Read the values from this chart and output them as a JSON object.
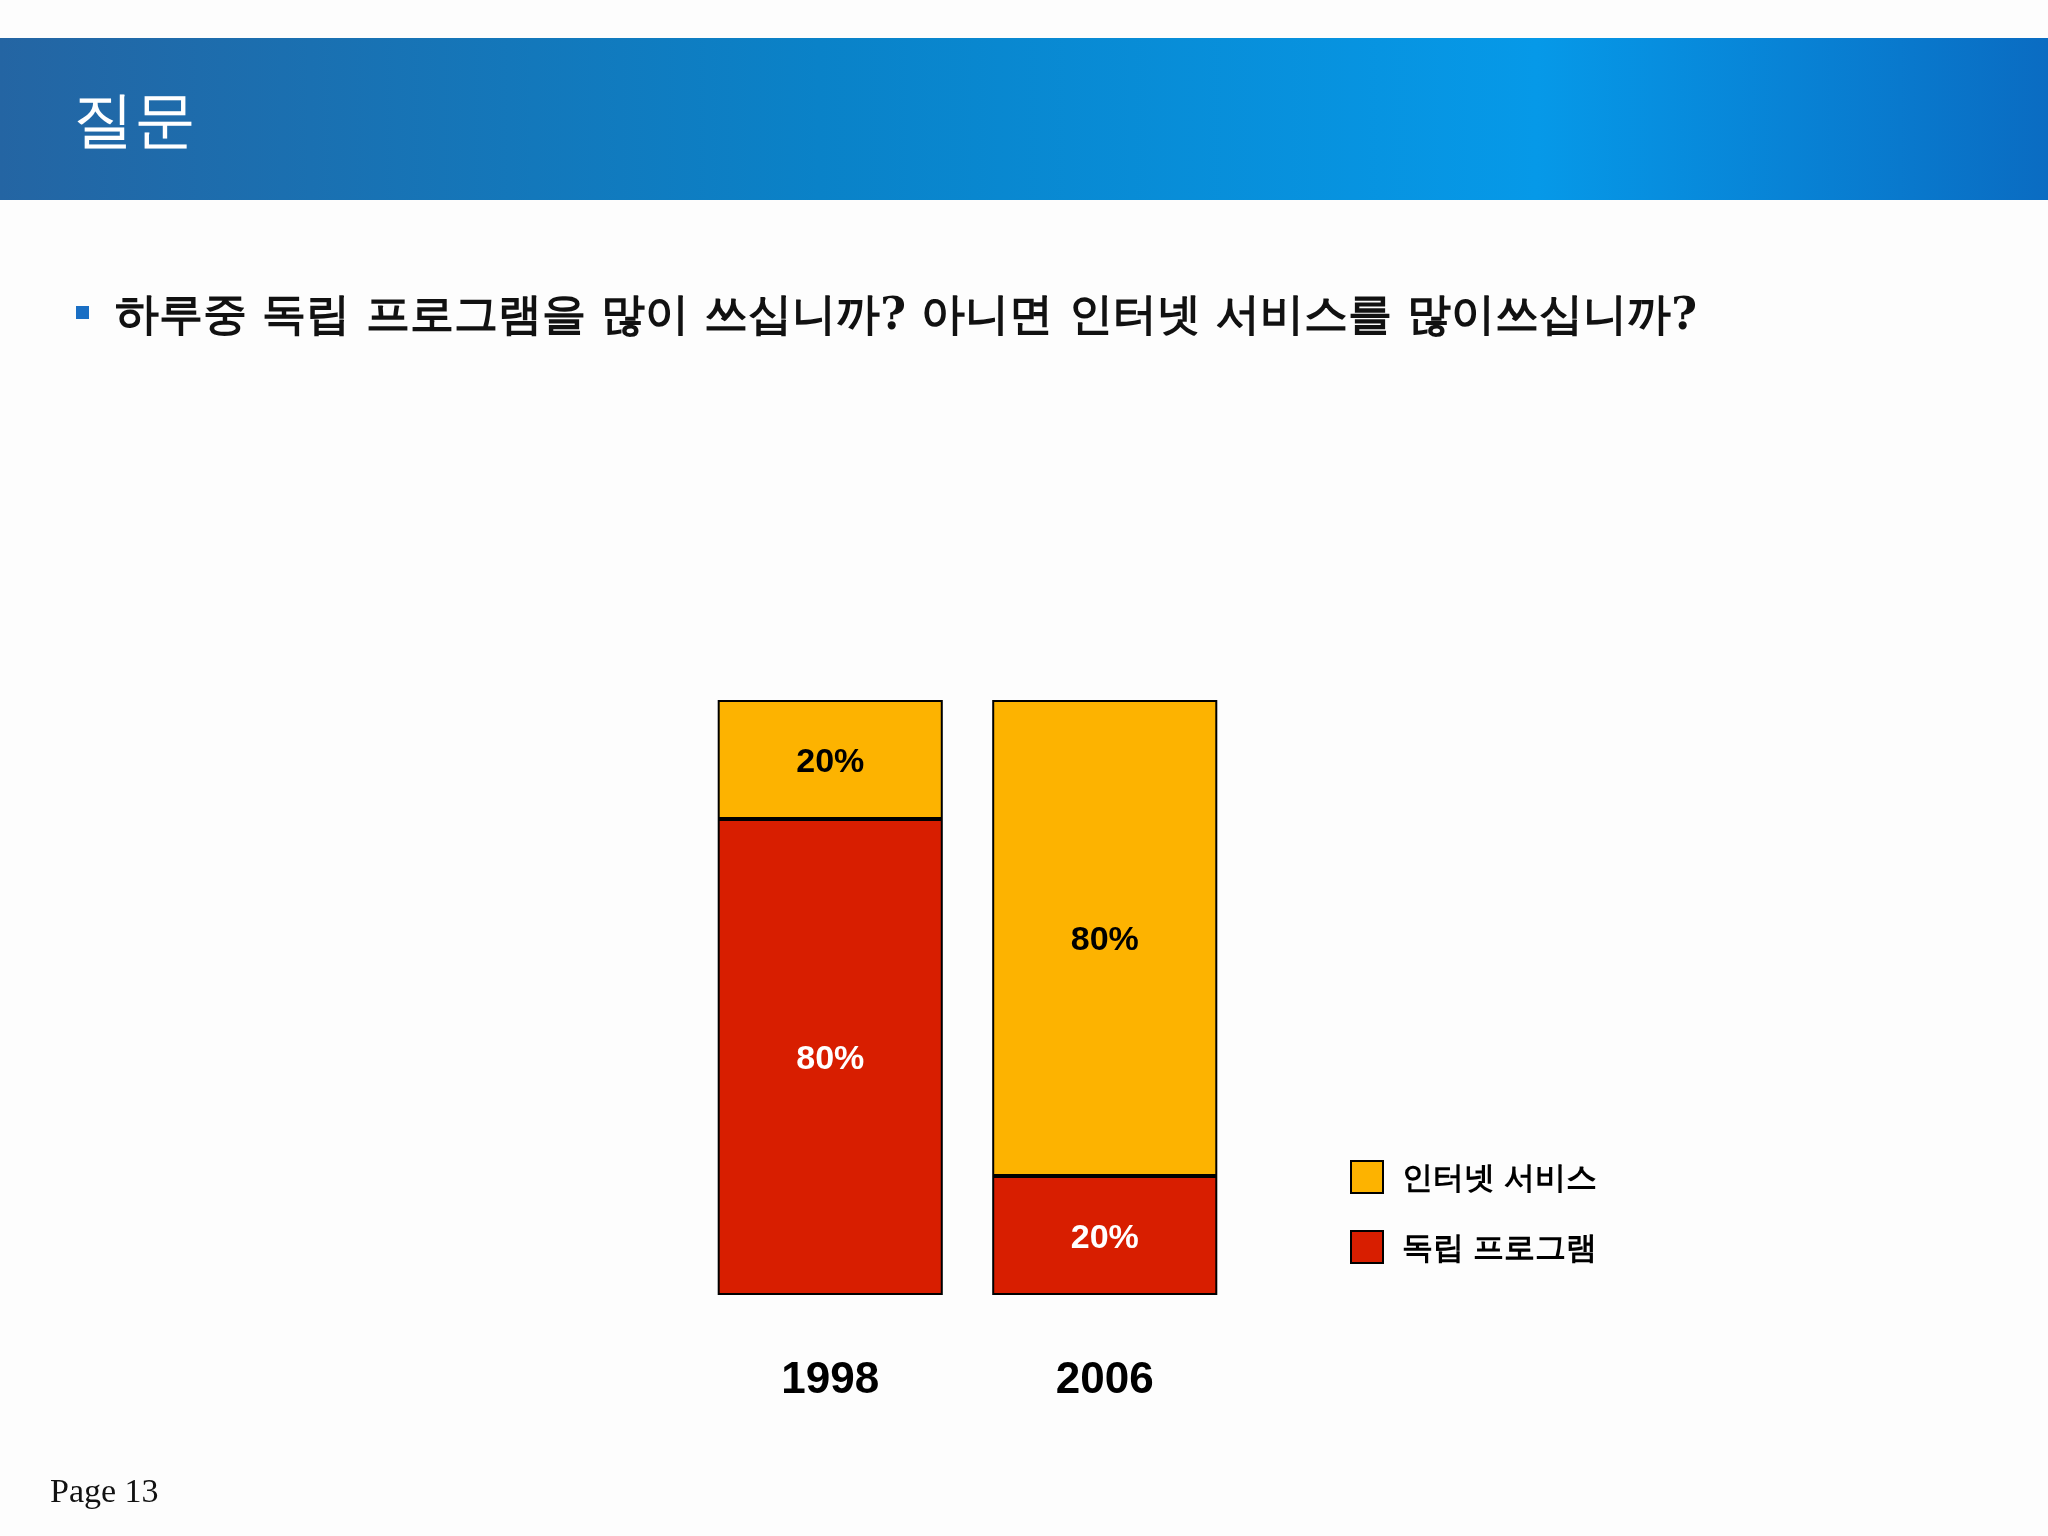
{
  "chart_data": {
    "type": "bar",
    "title": "질문",
    "subtitle": "하루중 독립 프로그램을 많이 쓰십니까? 아니면 인터넷 서비스를 많이쓰십니까?",
    "annotations": [
      "Page 13"
    ],
    "categories": [
      "1998",
      "2006"
    ],
    "stacked": true,
    "series": [
      {
        "name": "독립 프로그램",
        "color": "#d81e00",
        "values": [
          80,
          20
        ],
        "value_labels": [
          "80%",
          "20%"
        ]
      },
      {
        "name": "인터넷 서비스",
        "color": "#fdb300",
        "values": [
          20,
          80
        ],
        "value_labels": [
          "20%",
          "80%"
        ]
      }
    ],
    "legend": "right",
    "grid": false,
    "tick_labels": "x"
  }
}
